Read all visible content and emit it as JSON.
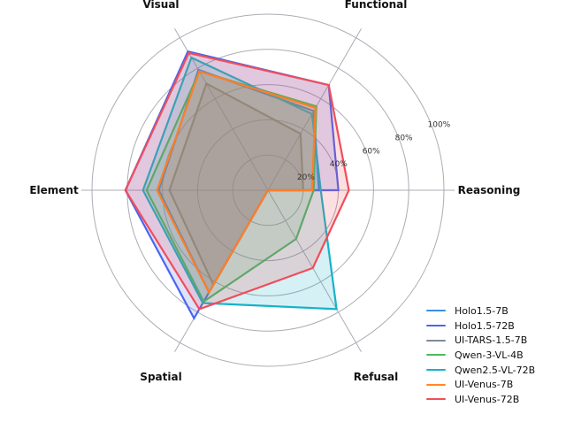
{
  "chart_data": {
    "type": "radar",
    "title": "",
    "axes": [
      "Reasoning",
      "Functional",
      "Visual",
      "Element",
      "Spatial",
      "Refusal"
    ],
    "radial_ticks": [
      20,
      40,
      60,
      80,
      100
    ],
    "radial_tick_labels": [
      "20%",
      "40%",
      "60%",
      "80%",
      "100%"
    ],
    "rlim": [
      0,
      100
    ],
    "grid": true,
    "legend_position": "lower right",
    "series": [
      {
        "name": "Holo1.5-7B",
        "color": "#3a8ee6",
        "values": [
          29,
          52,
          79,
          62,
          67,
          0
        ]
      },
      {
        "name": "Holo1.5-72B",
        "color": "#4a66f0",
        "values": [
          40,
          69,
          91,
          81,
          84,
          0
        ]
      },
      {
        "name": "UI-TARS-1.5-7B",
        "color": "#7f8a99",
        "values": [
          20,
          37,
          70,
          56,
          62,
          0
        ]
      },
      {
        "name": "Qwen-3-VL-4B",
        "color": "#4cbc5a",
        "values": [
          26,
          55,
          78,
          69,
          73,
          32
        ]
      },
      {
        "name": "Qwen2.5-VL-72B",
        "color": "#17b2c8",
        "values": [
          30,
          50,
          87,
          71,
          74,
          78
        ]
      },
      {
        "name": "UI-Venus-7B",
        "color": "#ff8a1f",
        "values": [
          25,
          54,
          78,
          63,
          67,
          0
        ]
      },
      {
        "name": "UI-Venus-72B",
        "color": "#f04e5a",
        "values": [
          46,
          69,
          90,
          81,
          78,
          51
        ]
      }
    ]
  },
  "legend": {
    "items": [
      {
        "label": "Holo1.5-7B",
        "color": "#3a8ee6"
      },
      {
        "label": "Holo1.5-72B",
        "color": "#4a66f0"
      },
      {
        "label": "UI-TARS-1.5-7B",
        "color": "#7f8a99"
      },
      {
        "label": "Qwen-3-VL-4B",
        "color": "#4cbc5a"
      },
      {
        "label": "Qwen2.5-VL-72B",
        "color": "#17b2c8"
      },
      {
        "label": "UI-Venus-7B",
        "color": "#ff8a1f"
      },
      {
        "label": "UI-Venus-72B",
        "color": "#f04e5a"
      }
    ]
  }
}
